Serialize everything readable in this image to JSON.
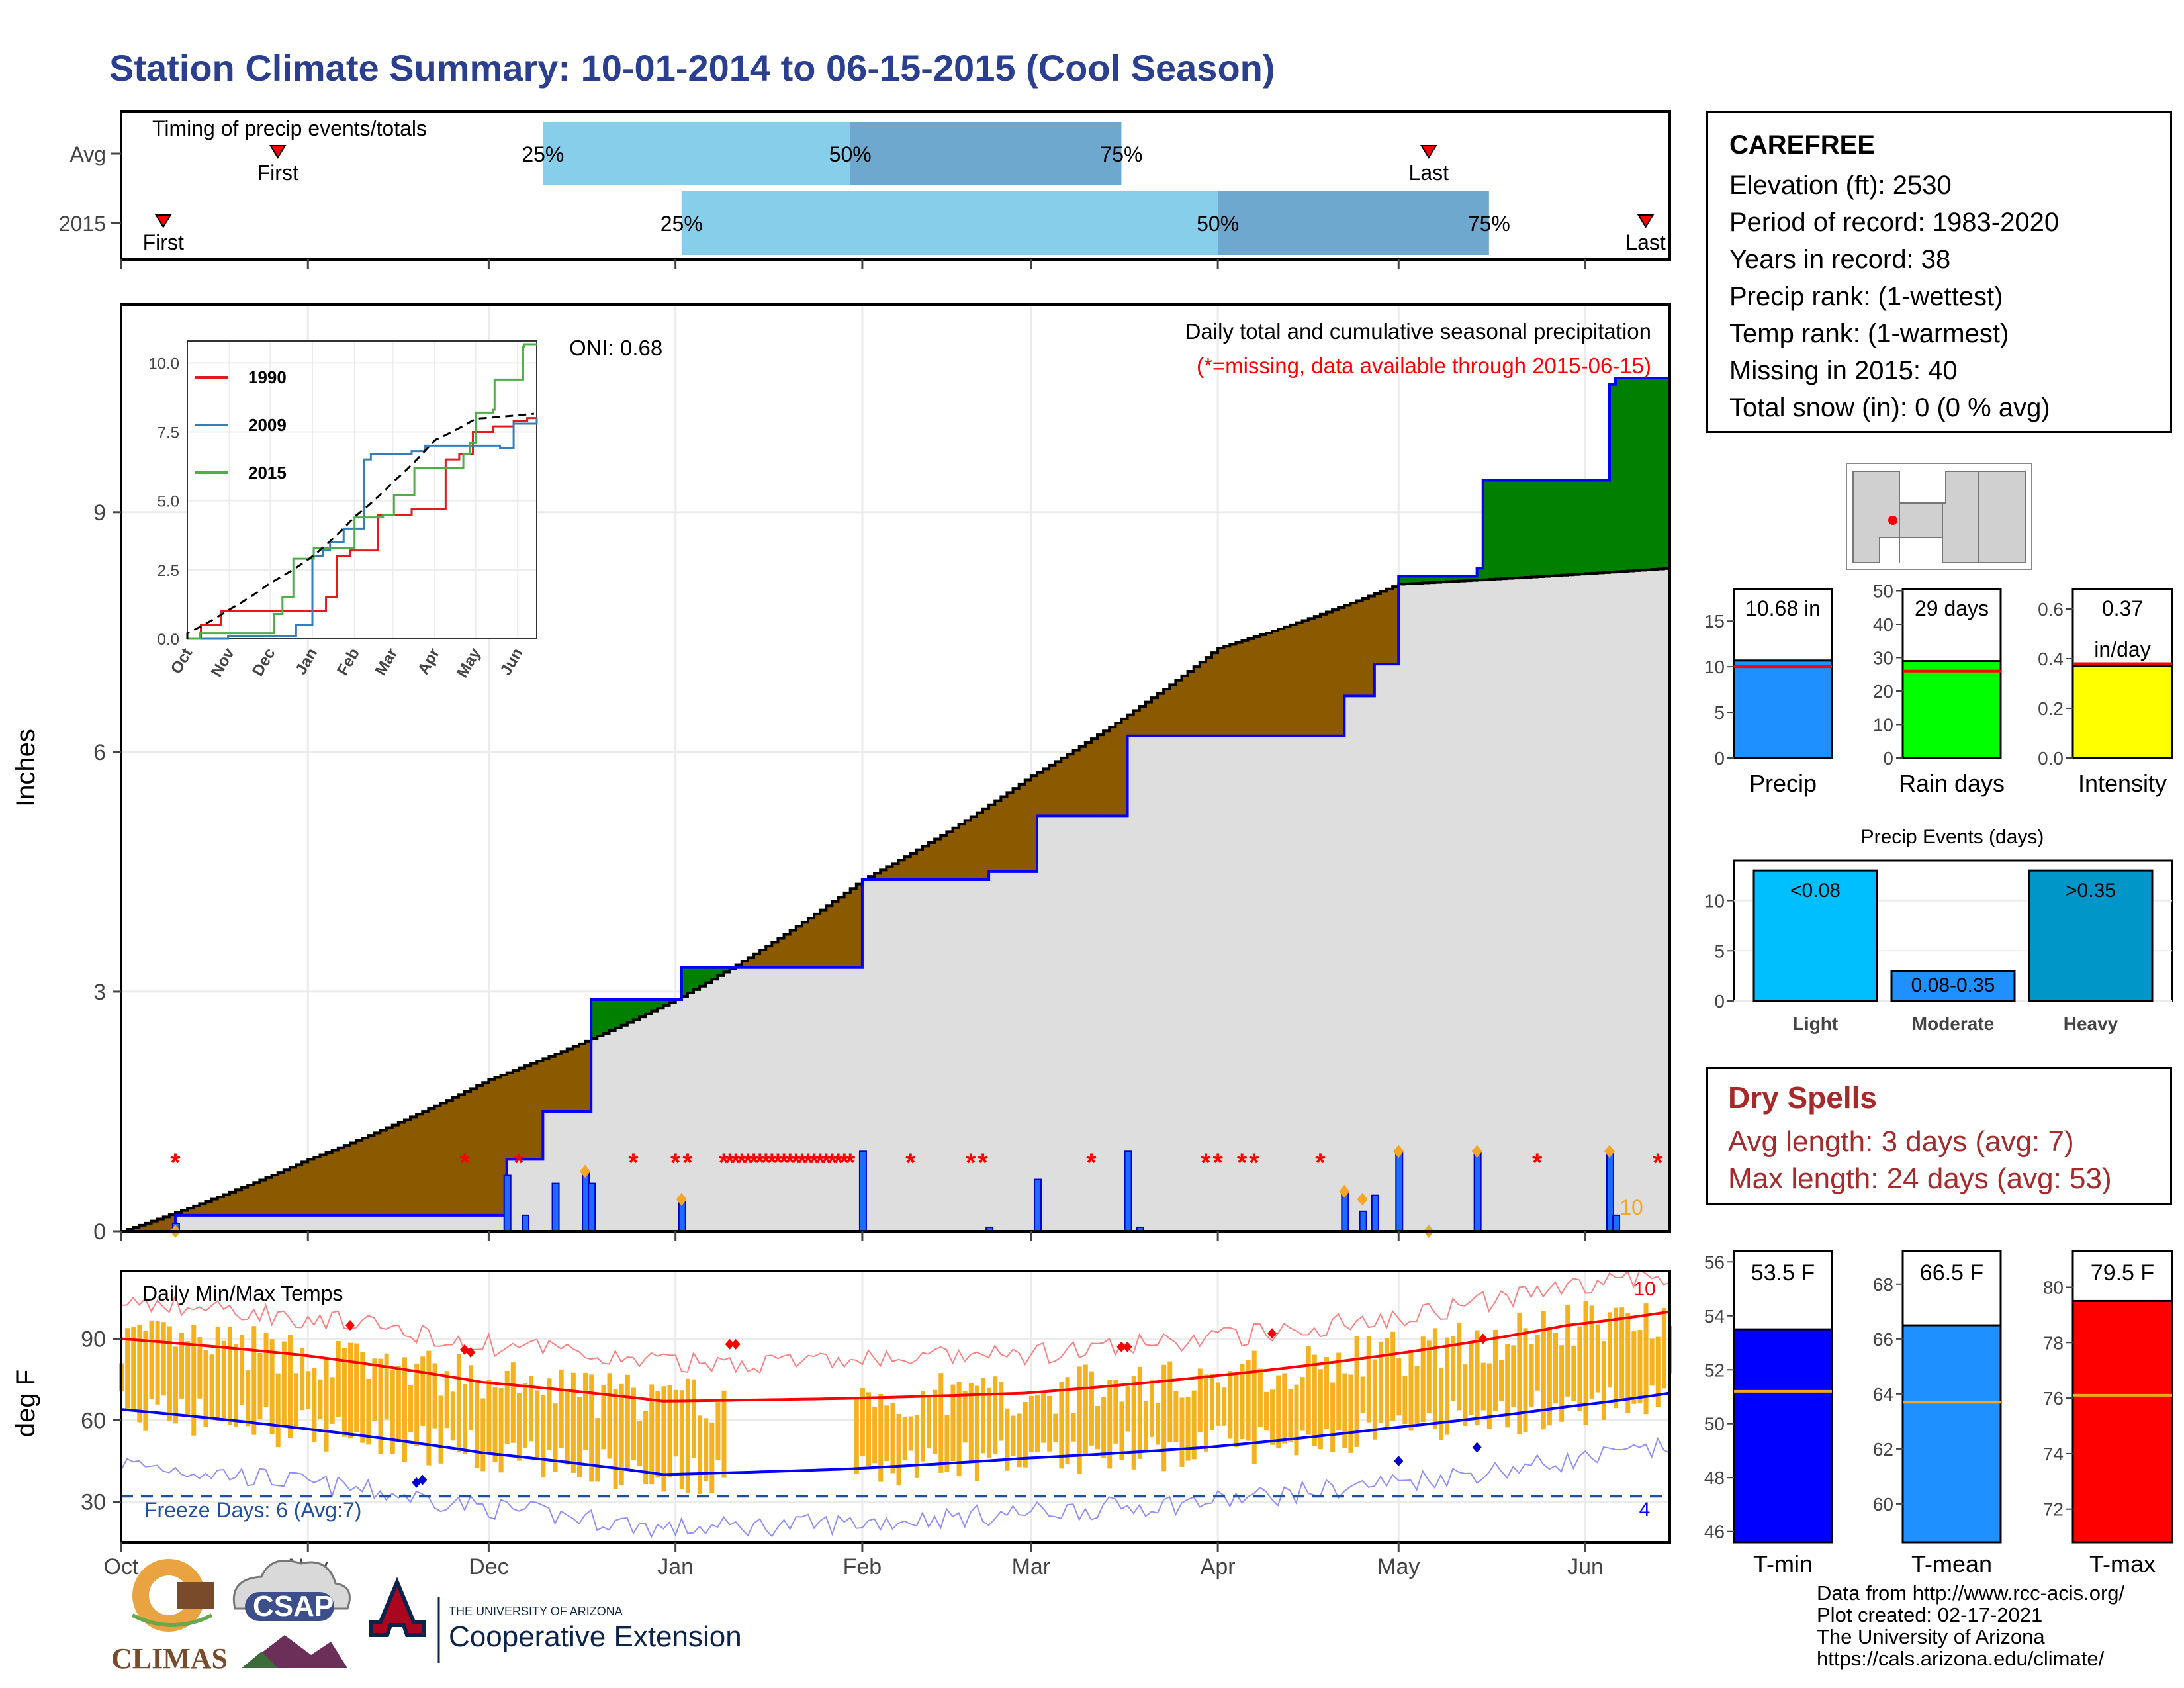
{
  "title": "Station Climate Summary: 10-01-2014 to 06-15-2015 (Cool Season)",
  "colors": {
    "title": "#2a3f8f",
    "brown": "#8b5a00",
    "green": "#007f00",
    "blue_line": "#0000ff",
    "gray_fill": "#dedede",
    "light_blue": "#87ceeb",
    "mid_blue": "#6fa8cf",
    "orange": "#f5a623",
    "red": "#ff0000"
  },
  "timing": {
    "title": "Timing of precip events/totals",
    "rows": [
      {
        "label": "Avg",
        "first_label": "First",
        "last_label": "Last",
        "p25": "25%",
        "p50": "50%",
        "p75": "75%",
        "first_day": 26,
        "p25_day": 70,
        "p50_day": 121,
        "p75_day": 166,
        "last_day": 217
      },
      {
        "label": "2015",
        "first_label": "First",
        "last_label": "Last",
        "p25": "25%",
        "p50": "50%",
        "p75": "75%",
        "first_day": 7,
        "p25_day": 93,
        "p50_day": 182,
        "p75_day": 227,
        "last_day": 253
      }
    ]
  },
  "precip": {
    "ylabel": "Inches",
    "caption": "Daily total and cumulative seasonal precipitation",
    "missing_note": "(*=missing, data available through 2015-06-15)",
    "oni": "ONI: 0.68",
    "count_label": "10",
    "y_ticks": [
      "0",
      "3",
      "6",
      "9"
    ],
    "x_ticks": [
      "Oct",
      "Nov",
      "Dec",
      "Jan",
      "Feb",
      "Mar",
      "Apr",
      "May",
      "Jun"
    ]
  },
  "inset": {
    "legend": [
      "1990",
      "2009",
      "2015"
    ],
    "y_ticks": [
      "0.0",
      "2.5",
      "5.0",
      "7.5",
      "10.0"
    ],
    "x_ticks": [
      "Oct",
      "Nov",
      "Dec",
      "Jan",
      "Feb",
      "Mar",
      "Apr",
      "May",
      "Jun"
    ]
  },
  "temps": {
    "title": "Daily Min/Max Temps",
    "ylabel": "deg F",
    "freeze": "Freeze Days: 6 (Avg:7)",
    "y_ticks": [
      "30",
      "60",
      "90"
    ],
    "top_count": "10",
    "bottom_count": "4"
  },
  "station": {
    "name": "CAREFREE",
    "lines": [
      "Elevation (ft): 2530",
      "Period of record: 1983-2020",
      "Years in record: 38",
      "Precip rank:  (1-wettest)",
      "Temp rank:  (1-warmest)",
      "Missing in 2015: 40",
      "Total snow (in): 0 (0 % avg)"
    ]
  },
  "bars_top": [
    {
      "label": "Precip",
      "value_label": "10.68 in",
      "value": 10.68,
      "avg": 10.0,
      "ticks": [
        "0",
        "5",
        "10",
        "15"
      ],
      "color": "#1e90ff"
    },
    {
      "label": "Rain days",
      "value_label": "29 days",
      "value": 29,
      "avg": 26,
      "ticks": [
        "0",
        "10",
        "20",
        "30",
        "40",
        "50"
      ],
      "color": "#00ff00"
    },
    {
      "label": "Intensity",
      "value_label": "0.37",
      "value_label2": "in/day",
      "value": 0.37,
      "avg": 0.38,
      "ticks": [
        "0.0",
        "0.2",
        "0.4",
        "0.6"
      ],
      "color": "#ffff00"
    }
  ],
  "events": {
    "title": "Precip Events (days)",
    "categories": [
      "Light",
      "Moderate",
      "Heavy"
    ],
    "labels": [
      "<0.08",
      "0.08-0.35",
      ">0.35"
    ],
    "values": [
      13,
      3,
      13
    ],
    "ticks": [
      "0",
      "5",
      "10"
    ]
  },
  "dry": {
    "title": "Dry Spells",
    "avg": "Avg length: 3 days (avg: 7)",
    "max": "Max length: 24 days (avg: 53)"
  },
  "temp_bars": [
    {
      "label": "T-min",
      "value_label": "53.5 F",
      "value": 53.5,
      "avg": 51.2,
      "ticks": [
        "46",
        "48",
        "50",
        "52",
        "54",
        "56"
      ],
      "color": "#0000ff"
    },
    {
      "label": "T-mean",
      "value_label": "66.5 F",
      "value": 66.5,
      "avg": 63.7,
      "ticks": [
        "60",
        "62",
        "64",
        "66",
        "68"
      ],
      "color": "#1e90ff"
    },
    {
      "label": "T-max",
      "value_label": "79.5 F",
      "value": 79.5,
      "avg": 76.1,
      "ticks": [
        "72",
        "74",
        "76",
        "78",
        "80"
      ],
      "color": "#ff0000"
    }
  ],
  "credits": [
    "Data from http://www.rcc-acis.org/",
    "Plot created: 02-17-2021",
    "The University of Arizona",
    "https://cals.arizona.edu/climate/"
  ],
  "logos": {
    "climas": "CLIMAS",
    "csap": "CSAP",
    "ua_small": "THE UNIVERSITY OF ARIZONA",
    "ua_big": "Cooperative Extension"
  },
  "chart_data": [
    {
      "type": "line",
      "title": "Daily total and cumulative seasonal precipitation",
      "ylabel": "Inches",
      "ylim": [
        0,
        11.5
      ],
      "series": [
        {
          "name": "2015 cumulative",
          "x": [
            "2014-10-01",
            "2014-10-10",
            "2014-12-04",
            "2014-12-10",
            "2014-12-18",
            "2014-12-19",
            "2015-01-01",
            "2015-01-02",
            "2015-01-31",
            "2015-02-01",
            "2015-02-22",
            "2015-03-01",
            "2015-03-02",
            "2015-03-17",
            "2015-04-22",
            "2015-04-27",
            "2015-04-30",
            "2015-05-01",
            "2015-05-14",
            "2015-05-15",
            "2015-06-05",
            "2015-06-06",
            "2015-06-15"
          ],
          "values": [
            0,
            0.2,
            0.2,
            0.9,
            1.5,
            2.9,
            2.9,
            3.3,
            3.3,
            4.4,
            4.5,
            4.5,
            5.2,
            6.2,
            6.2,
            6.7,
            7.1,
            8.2,
            8.3,
            9.4,
            9.4,
            10.6,
            10.68
          ]
        },
        {
          "name": "Average cumulative",
          "x": [
            "2014-10-01",
            "2014-11-01",
            "2014-12-01",
            "2015-01-01",
            "2015-02-01",
            "2015-03-01",
            "2015-04-01",
            "2015-05-01",
            "2015-06-15"
          ],
          "values": [
            0,
            0.9,
            1.9,
            2.9,
            4.4,
            5.7,
            7.3,
            8.1,
            8.3
          ]
        }
      ]
    },
    {
      "type": "bar",
      "title": "Precip Events (days)",
      "categories": [
        "Light",
        "Moderate",
        "Heavy"
      ],
      "values": [
        13,
        3,
        13
      ]
    },
    {
      "type": "bar",
      "title": "Station summary",
      "categories": [
        "Precip",
        "Rain days",
        "Intensity",
        "T-min",
        "T-mean",
        "T-max"
      ],
      "values": [
        10.68,
        29,
        0.37,
        53.5,
        66.5,
        79.5
      ]
    }
  ]
}
